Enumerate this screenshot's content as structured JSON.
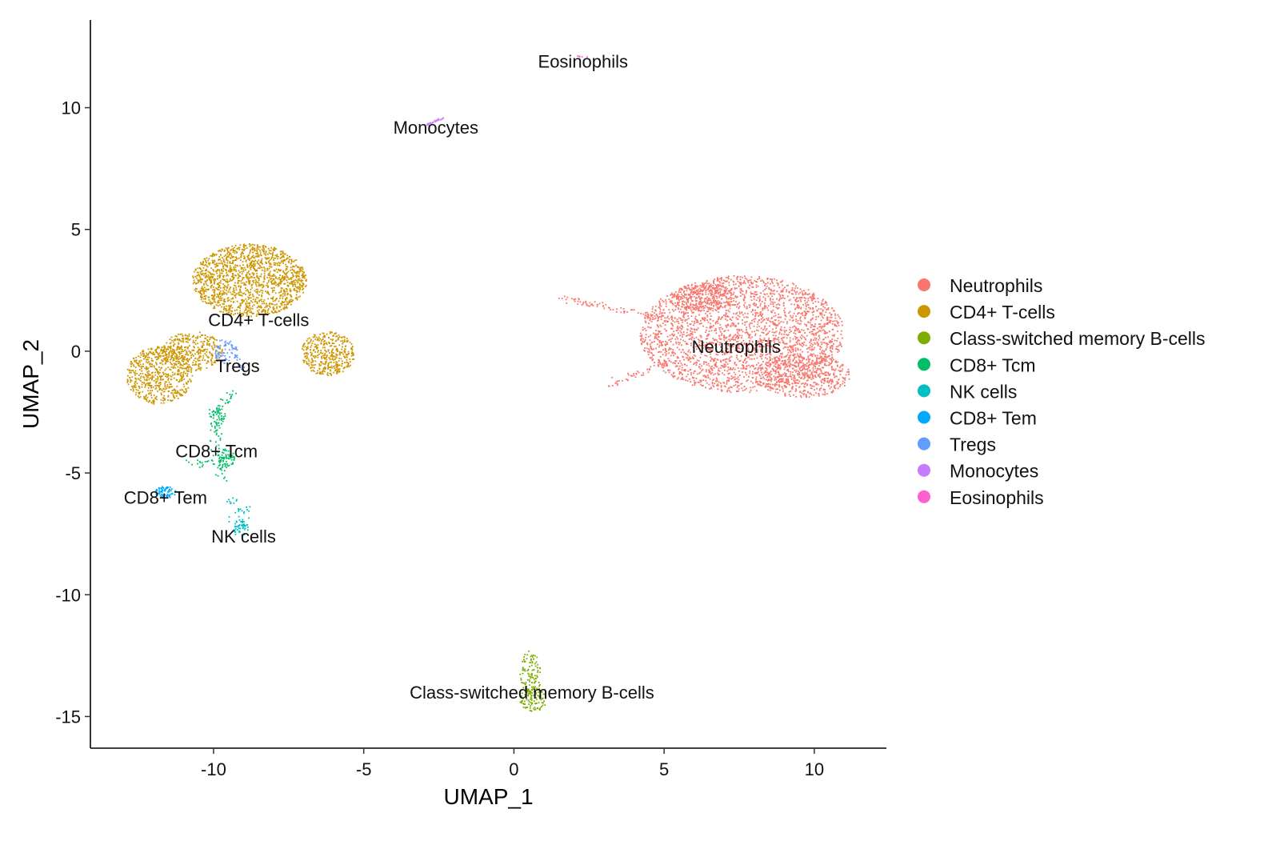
{
  "chart_data": {
    "type": "scatter",
    "title": "",
    "xlabel": "UMAP_1",
    "ylabel": "UMAP_2",
    "xlim": [
      -14.1,
      12.4
    ],
    "ylim": [
      -16.3,
      13.6
    ],
    "x_ticks": [
      -10,
      -5,
      0,
      5,
      10
    ],
    "y_ticks": [
      10,
      5,
      0,
      -5,
      -10,
      -15
    ],
    "x_tick_labels": [
      "-10",
      "-5",
      "0",
      "5",
      "10"
    ],
    "y_tick_labels": [
      "10",
      "5",
      "0",
      "-5",
      "-10",
      "-15"
    ],
    "grid": false,
    "legend_position": "right",
    "series": [
      {
        "name": "Neutrophils",
        "color": "#F8766D",
        "label": "Neutrophils",
        "label_pos": [
          7.4,
          0.2
        ],
        "regions": [
          {
            "cx": 7.6,
            "cy": 0.7,
            "rx": 3.4,
            "ry": 2.4,
            "n": 2600
          },
          {
            "cx": 9.6,
            "cy": -1.0,
            "rx": 1.6,
            "ry": 0.9,
            "n": 500
          },
          {
            "cx": 6.3,
            "cy": 2.2,
            "rx": 1.0,
            "ry": 0.6,
            "n": 300
          }
        ],
        "lines": [
          {
            "from": [
              1.6,
              2.2
            ],
            "to": [
              5.2,
              1.3
            ],
            "n": 80,
            "w": 0.15
          },
          {
            "from": [
              3.0,
              -1.5
            ],
            "to": [
              5.2,
              -0.4
            ],
            "n": 40,
            "w": 0.15
          }
        ]
      },
      {
        "name": "CD4+ T-cells",
        "color": "#CD9600",
        "label": "CD4+ T-cells",
        "label_pos": [
          -8.5,
          1.3
        ],
        "regions": [
          {
            "cx": -8.8,
            "cy": 2.9,
            "rx": 1.9,
            "ry": 1.5,
            "n": 1500
          },
          {
            "cx": -11.8,
            "cy": -1.0,
            "rx": 1.1,
            "ry": 1.2,
            "n": 600
          },
          {
            "cx": -10.7,
            "cy": 0.0,
            "rx": 1.0,
            "ry": 0.8,
            "n": 350
          },
          {
            "cx": -6.2,
            "cy": -0.1,
            "rx": 0.9,
            "ry": 0.9,
            "n": 400
          }
        ],
        "lines": []
      },
      {
        "name": "Class-switched memory B-cells",
        "color": "#7CAE00",
        "label": "Class-switched memory B-cells",
        "label_pos": [
          0.6,
          -14.0
        ],
        "regions": [
          {
            "cx": 0.55,
            "cy": -13.3,
            "rx": 0.35,
            "ry": 1.0,
            "n": 120
          },
          {
            "cx": 0.65,
            "cy": -14.3,
            "rx": 0.45,
            "ry": 0.5,
            "n": 100
          }
        ],
        "lines": []
      },
      {
        "name": "CD8+ Tcm",
        "color": "#00BE67",
        "label": "CD8+ Tcm",
        "label_pos": [
          -9.9,
          -4.1
        ],
        "regions": [
          {
            "cx": -9.9,
            "cy": -2.7,
            "rx": 0.3,
            "ry": 0.4,
            "n": 40
          },
          {
            "cx": -9.6,
            "cy": -4.4,
            "rx": 0.3,
            "ry": 0.4,
            "n": 60
          }
        ],
        "lines": [
          {
            "from": [
              -9.3,
              -1.6
            ],
            "to": [
              -10.0,
              -2.7
            ],
            "n": 30,
            "w": 0.2
          },
          {
            "from": [
              -10.0,
              -2.7
            ],
            "to": [
              -9.7,
              -5.2
            ],
            "n": 50,
            "w": 0.25
          },
          {
            "from": [
              -11.0,
              -4.6
            ],
            "to": [
              -9.4,
              -4.5
            ],
            "n": 20,
            "w": 0.15
          }
        ]
      },
      {
        "name": "NK cells",
        "color": "#00BFC4",
        "label": "NK cells",
        "label_pos": [
          -9.0,
          -7.6
        ],
        "regions": [
          {
            "cx": -9.1,
            "cy": -7.3,
            "rx": 0.25,
            "ry": 0.35,
            "n": 40
          }
        ],
        "lines": [
          {
            "from": [
              -9.5,
              -5.8
            ],
            "to": [
              -9.1,
              -7.5
            ],
            "n": 25,
            "w": 0.25
          },
          {
            "from": [
              -8.8,
              -6.2
            ],
            "to": [
              -9.0,
              -7.0
            ],
            "n": 10,
            "w": 0.15
          }
        ]
      },
      {
        "name": "CD8+ Tem",
        "color": "#00A9FF",
        "label": "CD8+ Tem",
        "label_pos": [
          -11.6,
          -6.0
        ],
        "regions": [
          {
            "cx": -11.6,
            "cy": -5.8,
            "rx": 0.35,
            "ry": 0.25,
            "n": 80
          }
        ],
        "lines": []
      },
      {
        "name": "Tregs",
        "color": "#619CFF",
        "label": "Tregs",
        "label_pos": [
          -9.2,
          -0.6
        ],
        "regions": [
          {
            "cx": -9.6,
            "cy": 0.0,
            "rx": 0.4,
            "ry": 0.5,
            "n": 70
          }
        ],
        "lines": [
          {
            "from": [
              -9.3,
              -0.2
            ],
            "to": [
              -8.9,
              -0.9
            ],
            "n": 15,
            "w": 0.1
          }
        ]
      },
      {
        "name": "Monocytes",
        "color": "#C77CFF",
        "label": "Monocytes",
        "label_pos": [
          -2.6,
          9.2
        ],
        "regions": [],
        "lines": [
          {
            "from": [
              -2.9,
              9.3
            ],
            "to": [
              -2.3,
              9.6
            ],
            "n": 25,
            "w": 0.05
          }
        ]
      },
      {
        "name": "Eosinophils",
        "color": "#FF61CC",
        "label": "Eosinophils",
        "label_pos": [
          2.3,
          11.9
        ],
        "regions": [],
        "lines": [
          {
            "from": [
              2.1,
              12.1
            ],
            "to": [
              2.5,
              12.1
            ],
            "n": 6,
            "w": 0.03
          }
        ]
      }
    ]
  }
}
